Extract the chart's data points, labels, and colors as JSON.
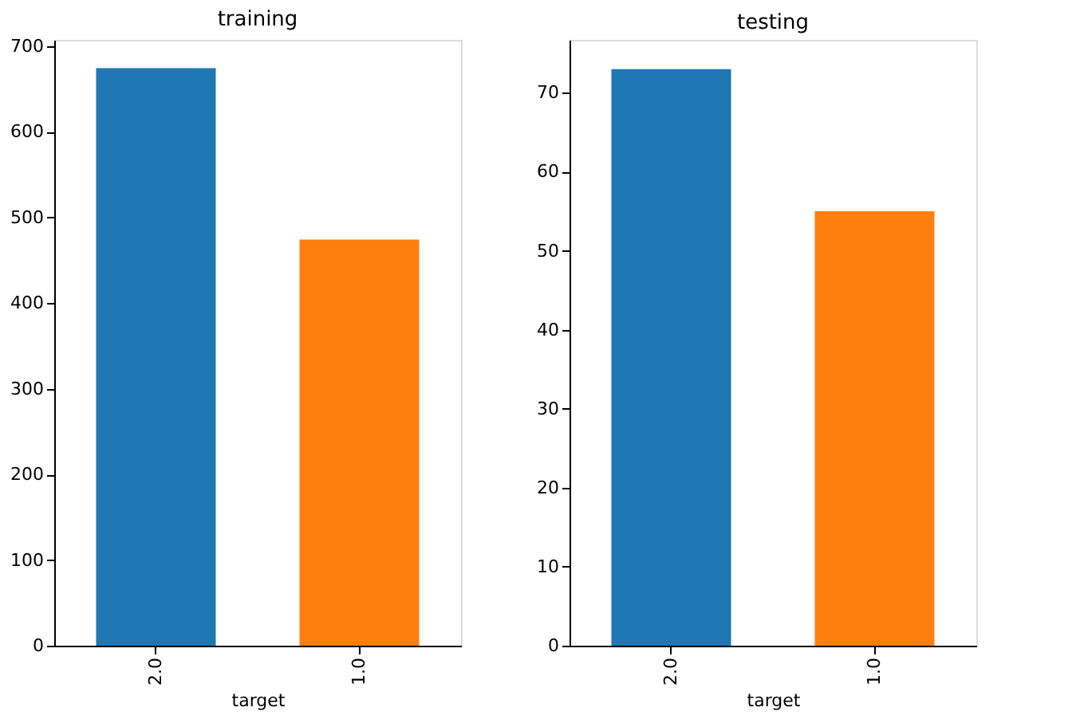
{
  "chart_data": [
    {
      "type": "bar",
      "title": "training",
      "xlabel": "target",
      "categories": [
        "2.0",
        "1.0"
      ],
      "values": [
        674,
        474
      ],
      "colors": [
        "#1f77b4",
        "#ff7f0e"
      ],
      "ylim": [
        0,
        707
      ],
      "yticks": [
        0,
        100,
        200,
        300,
        400,
        500,
        600,
        700
      ],
      "grid": false
    },
    {
      "type": "bar",
      "title": "testing",
      "xlabel": "target",
      "categories": [
        "2.0",
        "1.0"
      ],
      "values": [
        73,
        55
      ],
      "colors": [
        "#1f77b4",
        "#ff7f0e"
      ],
      "ylim": [
        0,
        76.7
      ],
      "yticks": [
        0,
        10,
        20,
        30,
        40,
        50,
        60,
        70
      ],
      "grid": false
    }
  ]
}
